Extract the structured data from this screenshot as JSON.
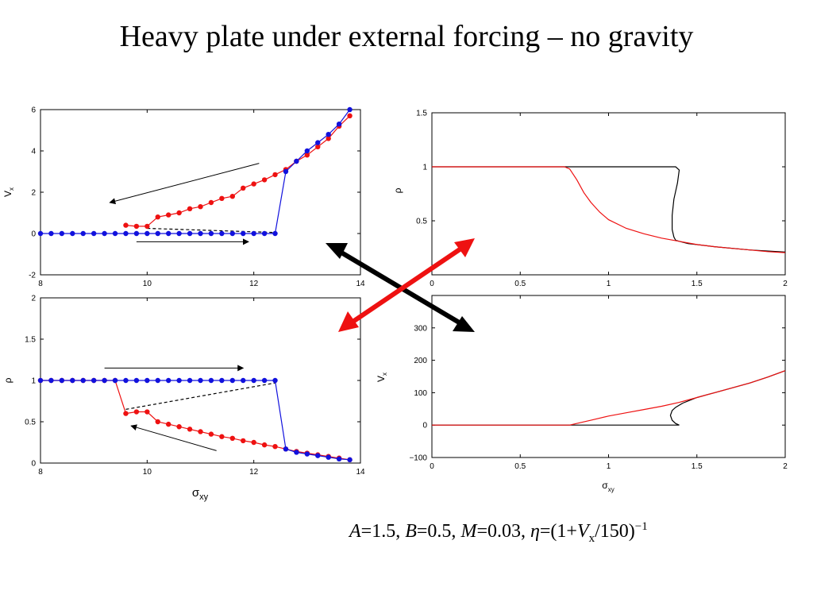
{
  "title": "Heavy plate under external forcing – no gravity",
  "formula": {
    "A": "A",
    "A_val": "=1.5,",
    "B": "B",
    "B_val": "=0.5,",
    "M": "M",
    "M_val": "=0.03,",
    "eta": "η",
    "eta_val": "=(1+",
    "V": "V",
    "V_sub": "x",
    "tail": "/150)",
    "exp": "−1"
  },
  "colors": {
    "red": "#ee1111",
    "blue": "#1111dd",
    "black": "#000000"
  },
  "chart_data": [
    {
      "type": "line",
      "panel": "top-left",
      "ylabel": "V_x",
      "xlabel": "",
      "xlim": [
        8,
        14
      ],
      "ylim": [
        -2,
        6
      ],
      "xticks": [
        "8",
        "10",
        "12",
        "14"
      ],
      "yticks": [
        "-2",
        "0",
        "2",
        "4",
        "6"
      ],
      "series": [
        {
          "color": "red",
          "markers": true,
          "x": [
            9.6,
            9.8,
            10.0,
            10.2,
            10.4,
            10.6,
            10.8,
            11.0,
            11.2,
            11.4,
            11.6,
            11.8,
            12.0,
            12.2,
            12.4,
            12.6,
            12.8,
            13.0,
            13.2,
            13.4,
            13.6,
            13.8
          ],
          "y": [
            0.4,
            0.35,
            0.35,
            0.8,
            0.9,
            1.0,
            1.2,
            1.3,
            1.5,
            1.7,
            1.8,
            2.2,
            2.4,
            2.6,
            2.85,
            3.1,
            3.5,
            3.8,
            4.2,
            4.6,
            5.2,
            5.7
          ]
        },
        {
          "color": "blue",
          "markers": true,
          "x": [
            8.0,
            8.2,
            8.4,
            8.6,
            8.8,
            9.0,
            9.2,
            9.4,
            9.6,
            9.8,
            10.0,
            10.2,
            10.4,
            10.6,
            10.8,
            11.0,
            11.2,
            11.4,
            11.6,
            11.8,
            12.0,
            12.2,
            12.4,
            12.6,
            12.8,
            13.0,
            13.2,
            13.4,
            13.6,
            13.8
          ],
          "y": [
            0,
            0,
            0,
            0,
            0,
            0,
            0,
            0,
            0,
            0,
            0,
            0,
            0,
            0,
            0,
            0,
            0,
            0,
            0,
            0,
            0,
            0,
            0,
            3.0,
            3.5,
            4.0,
            4.4,
            4.8,
            5.3,
            6.0
          ]
        }
      ],
      "dashed": {
        "x": [
          10.0,
          12.4
        ],
        "y": [
          0.25,
          0.05
        ]
      },
      "arrows": [
        {
          "from": [
            12.1,
            3.4
          ],
          "to": [
            9.3,
            1.5
          ]
        },
        {
          "from": [
            9.8,
            -0.4
          ],
          "to": [
            11.9,
            -0.4
          ]
        }
      ]
    },
    {
      "type": "line",
      "panel": "bottom-left",
      "ylabel": "ρ",
      "xlabel": "σxy",
      "xlim": [
        8,
        14
      ],
      "ylim": [
        0,
        2
      ],
      "xticks": [
        "8",
        "10",
        "12",
        "14"
      ],
      "yticks": [
        "0",
        "0.5",
        "1",
        "1.5",
        "2"
      ],
      "series": [
        {
          "color": "red",
          "markers": true,
          "x": [
            8.0,
            8.2,
            8.4,
            8.6,
            8.8,
            9.0,
            9.2,
            9.4,
            9.6,
            9.8,
            10.0,
            10.2,
            10.4,
            10.6,
            10.8,
            11.0,
            11.2,
            11.4,
            11.6,
            11.8,
            12.0,
            12.2,
            12.4,
            12.6,
            12.8,
            13.0,
            13.2,
            13.4,
            13.6,
            13.8
          ],
          "y": [
            1,
            1,
            1,
            1,
            1,
            1,
            1,
            1,
            0.6,
            0.62,
            0.62,
            0.5,
            0.47,
            0.44,
            0.41,
            0.38,
            0.35,
            0.32,
            0.3,
            0.27,
            0.25,
            0.22,
            0.2,
            0.17,
            0.14,
            0.12,
            0.1,
            0.08,
            0.06,
            0.04
          ]
        },
        {
          "color": "blue",
          "markers": true,
          "x": [
            8.0,
            8.2,
            8.4,
            8.6,
            8.8,
            9.0,
            9.2,
            9.4,
            9.6,
            9.8,
            10.0,
            10.2,
            10.4,
            10.6,
            10.8,
            11.0,
            11.2,
            11.4,
            11.6,
            11.8,
            12.0,
            12.2,
            12.4,
            12.6,
            12.8,
            13.0,
            13.2,
            13.4,
            13.6,
            13.8
          ],
          "y": [
            1,
            1,
            1,
            1,
            1,
            1,
            1,
            1,
            1,
            1,
            1,
            1,
            1,
            1,
            1,
            1,
            1,
            1,
            1,
            1,
            1,
            1,
            1,
            0.17,
            0.13,
            0.11,
            0.09,
            0.07,
            0.05,
            0.04
          ]
        }
      ],
      "dashed": {
        "x": [
          9.6,
          12.4
        ],
        "y": [
          0.65,
          0.97
        ]
      },
      "arrows": [
        {
          "from": [
            9.2,
            1.15
          ],
          "to": [
            11.8,
            1.15
          ]
        },
        {
          "from": [
            11.3,
            0.15
          ],
          "to": [
            9.7,
            0.45
          ]
        }
      ]
    },
    {
      "type": "line",
      "panel": "top-right",
      "ylabel": "ρ",
      "xlabel": "",
      "xlim": [
        0,
        2
      ],
      "ylim": [
        0,
        1.5
      ],
      "xticks": [
        "0",
        "0.5",
        "1",
        "1.5",
        "2"
      ],
      "yticks": [
        "0.5",
        "1",
        "1.5"
      ],
      "series": [
        {
          "color": "black",
          "x": [
            0,
            0.78,
            1.38,
            1.4,
            1.39,
            1.37,
            1.36,
            1.36,
            1.37,
            1.38,
            1.4,
            1.45,
            1.6,
            1.8,
            2.0
          ],
          "y": [
            1,
            1,
            1,
            0.97,
            0.85,
            0.7,
            0.55,
            0.42,
            0.35,
            0.32,
            0.31,
            0.29,
            0.26,
            0.23,
            0.21
          ]
        },
        {
          "color": "red",
          "x": [
            0,
            0.75,
            0.78,
            0.82,
            0.86,
            0.9,
            0.95,
            1.0,
            1.1,
            1.2,
            1.3,
            1.4,
            1.5,
            1.6,
            1.7,
            1.8,
            1.9,
            2.0
          ],
          "y": [
            1,
            1,
            0.98,
            0.88,
            0.76,
            0.67,
            0.58,
            0.51,
            0.43,
            0.38,
            0.34,
            0.31,
            0.28,
            0.26,
            0.245,
            0.23,
            0.215,
            0.205
          ]
        }
      ]
    },
    {
      "type": "line",
      "panel": "bottom-right",
      "ylabel": "V_x",
      "xlabel": "σxy",
      "xlim": [
        0,
        2
      ],
      "ylim": [
        -100,
        400
      ],
      "xticks": [
        "0",
        "0.5",
        "1",
        "1.5",
        "2"
      ],
      "yticks": [
        "−100",
        "0",
        "100",
        "200",
        "300"
      ],
      "series": [
        {
          "color": "black",
          "x": [
            0,
            0.78,
            1.4,
            1.38,
            1.36,
            1.35,
            1.36,
            1.38,
            1.42,
            1.5,
            1.6,
            1.7,
            1.8,
            1.9,
            2.0
          ],
          "y": [
            0,
            0,
            0,
            5,
            15,
            30,
            45,
            55,
            68,
            85,
            100,
            115,
            130,
            148,
            168
          ]
        },
        {
          "color": "red",
          "x": [
            0,
            0.78,
            0.9,
            1.0,
            1.1,
            1.2,
            1.3,
            1.4,
            1.5,
            1.6,
            1.7,
            1.8,
            1.9,
            2.0
          ],
          "y": [
            0,
            0,
            15,
            28,
            38,
            48,
            58,
            70,
            85,
            100,
            115,
            130,
            148,
            168
          ]
        }
      ]
    }
  ]
}
